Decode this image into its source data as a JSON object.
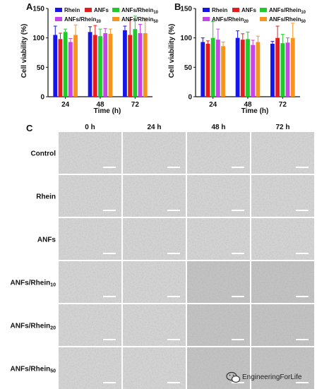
{
  "chart_data": [
    {
      "panel": "A",
      "type": "bar",
      "categories": [
        "24",
        "48",
        "72"
      ],
      "ylabel": "Cell viability (%)",
      "xlabel": "Time (h)",
      "ylim": [
        0,
        150
      ],
      "yticks": [
        0,
        50,
        100,
        150
      ],
      "series": [
        {
          "name": "Rhein",
          "color": "#1515e8",
          "values": [
            105,
            110,
            113
          ],
          "errors": [
            15,
            9,
            7
          ]
        },
        {
          "name": "ANFs",
          "color": "#e51c1c",
          "values": [
            98,
            105,
            105
          ],
          "errors": [
            10,
            16,
            25
          ]
        },
        {
          "name": "ANFs/Rhein10",
          "color": "#1ecb2b",
          "values": [
            110,
            103,
            115
          ],
          "errors": [
            5,
            12,
            22
          ]
        },
        {
          "name": "ANFs/Rhein20",
          "color": "#c744e6",
          "values": [
            93,
            108,
            108
          ],
          "errors": [
            6,
            8,
            15
          ]
        },
        {
          "name": "ANFs/Rhein50",
          "color": "#f7941d",
          "values": [
            105,
            107,
            108
          ],
          "errors": [
            17,
            8,
            26
          ]
        }
      ]
    },
    {
      "panel": "B",
      "type": "bar",
      "categories": [
        "24",
        "48",
        "72"
      ],
      "ylabel": "Cell viability (%)",
      "xlabel": "Time (h)",
      "ylim": [
        0,
        150
      ],
      "yticks": [
        0,
        50,
        100,
        150
      ],
      "series": [
        {
          "name": "Rhein",
          "color": "#1515e8",
          "values": [
            93,
            100,
            90
          ],
          "errors": [
            7,
            12,
            4
          ]
        },
        {
          "name": "ANFs",
          "color": "#e51c1c",
          "values": [
            90,
            97,
            100
          ],
          "errors": [
            5,
            10,
            20
          ]
        },
        {
          "name": "ANFs/Rhein10",
          "color": "#1ecb2b",
          "values": [
            100,
            98,
            91
          ],
          "errors": [
            28,
            12,
            15
          ]
        },
        {
          "name": "ANFs/Rhein20",
          "color": "#c744e6",
          "values": [
            97,
            88,
            92
          ],
          "errors": [
            18,
            8,
            8
          ]
        },
        {
          "name": "ANFs/Rhein50",
          "color": "#f7941d",
          "values": [
            86,
            93,
            100
          ],
          "errors": [
            7,
            10,
            25
          ]
        }
      ]
    }
  ],
  "panels": {
    "a": "A",
    "b": "B",
    "c": "C"
  },
  "legend": [
    {
      "main": "Rhein",
      "sub": ""
    },
    {
      "main": "ANFs",
      "sub": ""
    },
    {
      "main": "ANFs/Rhein",
      "sub": "10"
    },
    {
      "main": "ANFs/Rhein",
      "sub": "20"
    },
    {
      "main": "ANFs/Rhein",
      "sub": "50"
    }
  ],
  "micrographs": {
    "columns": [
      "0 h",
      "24 h",
      "48 h",
      "72 h"
    ],
    "rows": [
      {
        "main": "Control",
        "sub": ""
      },
      {
        "main": "Rhein",
        "sub": ""
      },
      {
        "main": "ANFs",
        "sub": ""
      },
      {
        "main": "ANFs/Rhein",
        "sub": "10"
      },
      {
        "main": "ANFs/Rhein",
        "sub": "20"
      },
      {
        "main": "ANFs/Rhein",
        "sub": "50"
      }
    ],
    "tile_color": "#d3d3d3",
    "tile_color_dense": "#c2c2c2"
  },
  "watermark": {
    "text": "EngineeringForLife",
    "icon": "wechat-icon"
  }
}
